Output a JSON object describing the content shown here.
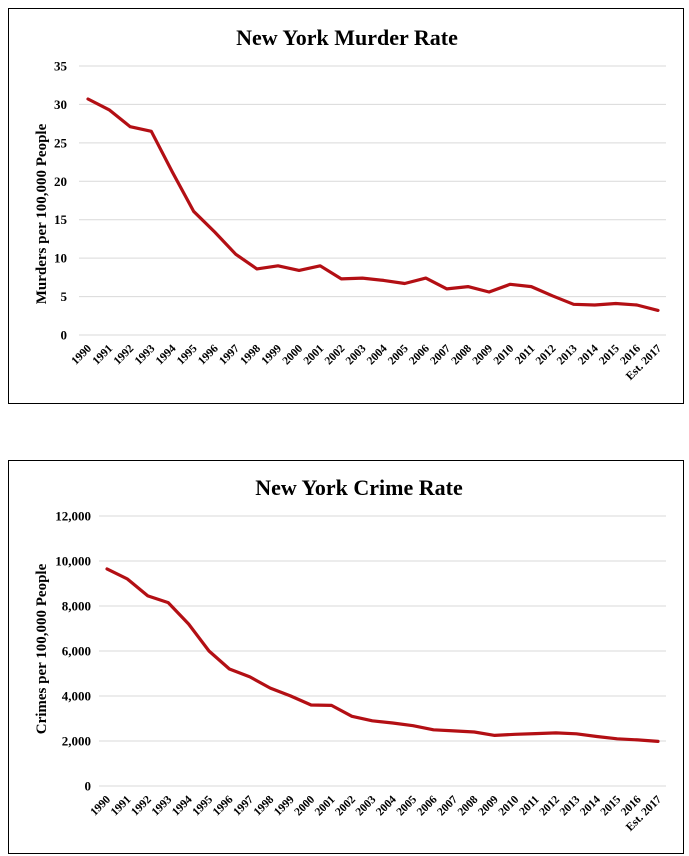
{
  "chart_data": [
    {
      "type": "line",
      "title": "New York Murder Rate",
      "xlabel": "",
      "ylabel": "Murders per 100,000 People",
      "ylim": [
        0,
        35
      ],
      "yticks": [
        "0",
        "5",
        "10",
        "15",
        "20",
        "25",
        "30",
        "35"
      ],
      "grid": true,
      "color": "#b30f14",
      "categories": [
        "1990",
        "1991",
        "1992",
        "1993",
        "1994",
        "1995",
        "1996",
        "1997",
        "1998",
        "1999",
        "2000",
        "2001",
        "2002",
        "2003",
        "2004",
        "2005",
        "2006",
        "2007",
        "2008",
        "2009",
        "2010",
        "2011",
        "2012",
        "2013",
        "2014",
        "2015",
        "2016",
        "Est. 2017"
      ],
      "values": [
        30.7,
        29.3,
        27.1,
        26.5,
        21.2,
        16.1,
        13.4,
        10.5,
        8.6,
        9.0,
        8.4,
        9.0,
        7.3,
        7.4,
        7.1,
        6.7,
        7.4,
        6.0,
        6.3,
        5.6,
        6.6,
        6.3,
        5.1,
        4.0,
        3.9,
        4.1,
        3.9,
        3.2
      ]
    },
    {
      "type": "line",
      "title": "New York Crime Rate",
      "xlabel": "",
      "ylabel": "Crimes per 100,000 People",
      "ylim": [
        0,
        12000
      ],
      "yticks": [
        "0",
        "2,000",
        "4,000",
        "6,000",
        "8,000",
        "10,000",
        "12,000"
      ],
      "grid": true,
      "color": "#b30f14",
      "categories": [
        "1990",
        "1991",
        "1992",
        "1993",
        "1994",
        "1995",
        "1996",
        "1997",
        "1998",
        "1999",
        "2000",
        "2001",
        "2002",
        "2003",
        "2004",
        "2005",
        "2006",
        "2007",
        "2008",
        "2009",
        "2010",
        "2011",
        "2012",
        "2013",
        "2014",
        "2015",
        "2016",
        "Est. 2017"
      ],
      "values": [
        9650,
        9200,
        8450,
        8150,
        7200,
        6000,
        5200,
        4850,
        4350,
        4000,
        3600,
        3580,
        3100,
        2900,
        2800,
        2680,
        2500,
        2450,
        2400,
        2250,
        2300,
        2330,
        2360,
        2320,
        2200,
        2100,
        2050,
        1980
      ]
    }
  ]
}
